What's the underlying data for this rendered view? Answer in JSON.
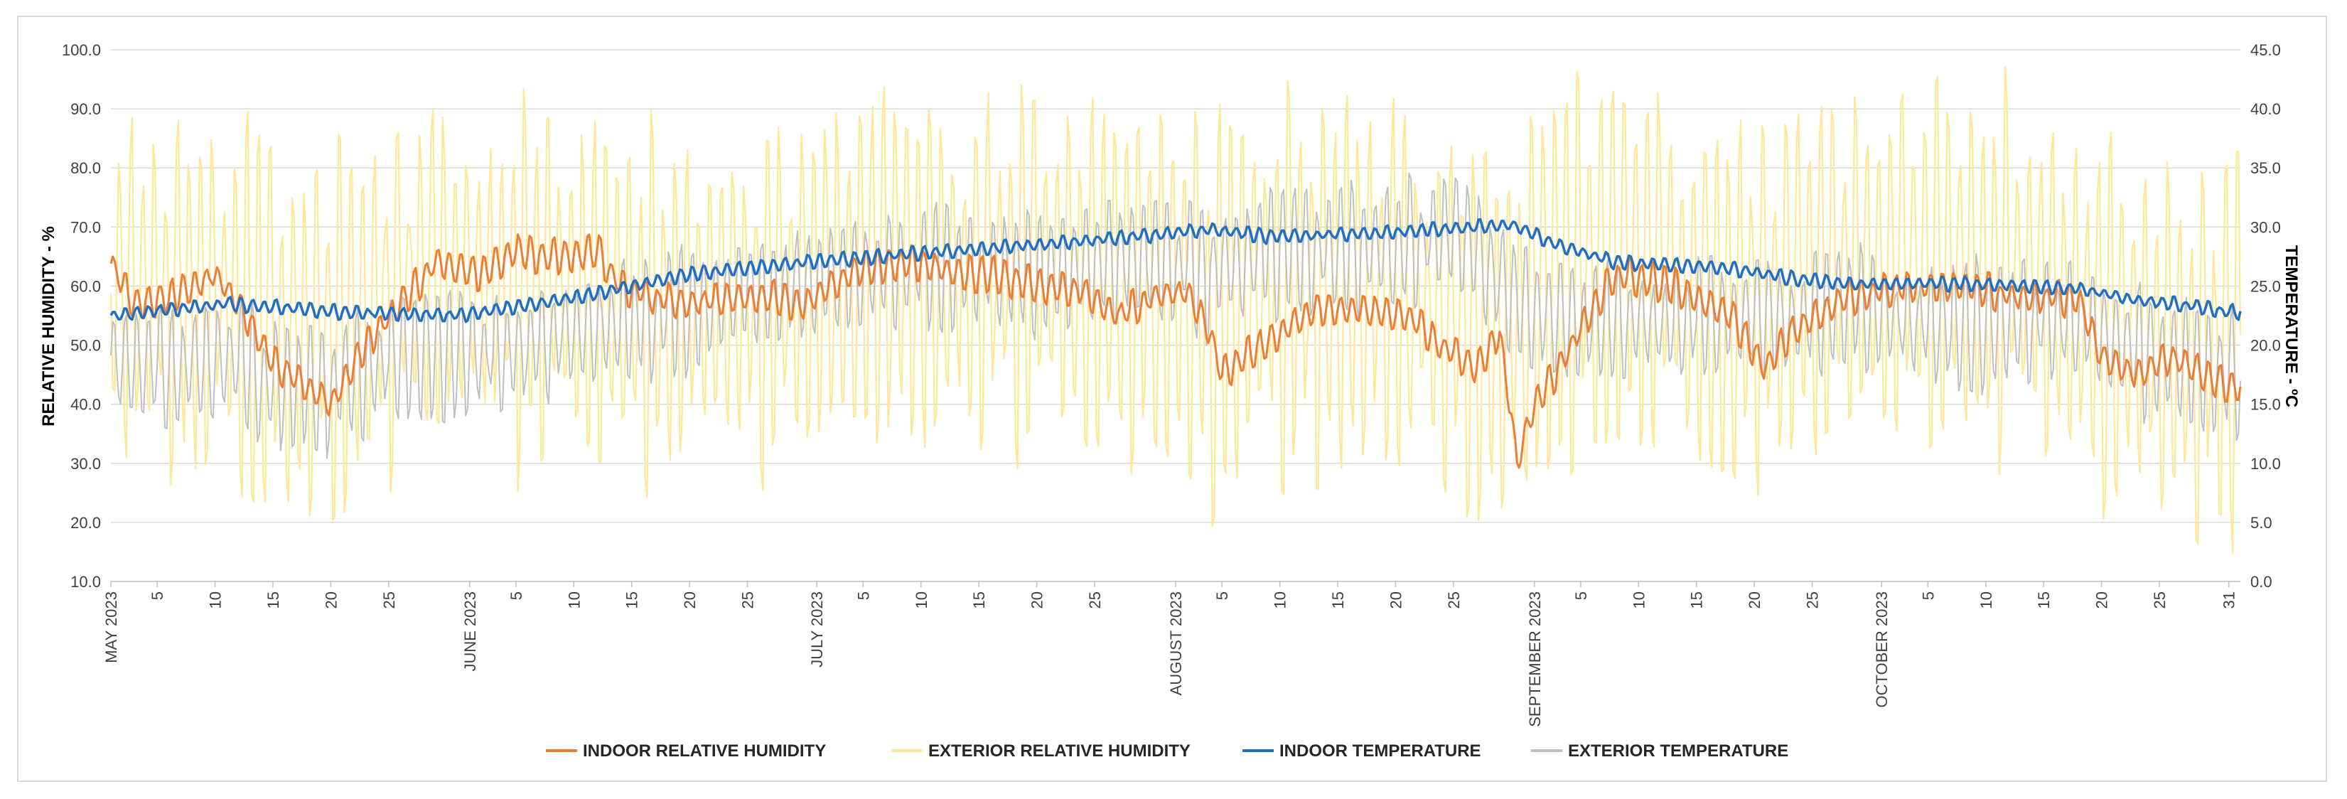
{
  "chart_data": {
    "type": "line",
    "title": "",
    "ylabel": "RELATIVE HUMIDITY - %",
    "y2label": "TEMPERATURE - ºC",
    "xlabel": "",
    "ylim": [
      10,
      100
    ],
    "y2lim": [
      0,
      45
    ],
    "grid": true,
    "legend_position": "bottom",
    "y_ticks": [
      "10.0",
      "20.0",
      "30.0",
      "40.0",
      "50.0",
      "60.0",
      "70.0",
      "80.0",
      "90.0",
      "100.0"
    ],
    "y2_ticks": [
      "0.0",
      "5.0",
      "10.0",
      "15.0",
      "20.0",
      "25.0",
      "30.0",
      "35.0",
      "40.0",
      "45.0"
    ],
    "x_range_days": [
      0,
      184
    ],
    "x_ticks": [
      {
        "day": 0,
        "label": "MAY 2023"
      },
      {
        "day": 4,
        "label": "5"
      },
      {
        "day": 9,
        "label": "10"
      },
      {
        "day": 14,
        "label": "15"
      },
      {
        "day": 19,
        "label": "20"
      },
      {
        "day": 24,
        "label": "25"
      },
      {
        "day": 31,
        "label": "JUNE 2023"
      },
      {
        "day": 35,
        "label": "5"
      },
      {
        "day": 40,
        "label": "10"
      },
      {
        "day": 45,
        "label": "15"
      },
      {
        "day": 50,
        "label": "20"
      },
      {
        "day": 55,
        "label": "25"
      },
      {
        "day": 61,
        "label": "JULY 2023"
      },
      {
        "day": 65,
        "label": "5"
      },
      {
        "day": 70,
        "label": "10"
      },
      {
        "day": 75,
        "label": "15"
      },
      {
        "day": 80,
        "label": "20"
      },
      {
        "day": 85,
        "label": "25"
      },
      {
        "day": 92,
        "label": "AUGUST 2023"
      },
      {
        "day": 96,
        "label": "5"
      },
      {
        "day": 101,
        "label": "10"
      },
      {
        "day": 106,
        "label": "15"
      },
      {
        "day": 111,
        "label": "20"
      },
      {
        "day": 116,
        "label": "25"
      },
      {
        "day": 123,
        "label": "SEPTEMBER 2023"
      },
      {
        "day": 127,
        "label": "5"
      },
      {
        "day": 132,
        "label": "10"
      },
      {
        "day": 137,
        "label": "15"
      },
      {
        "day": 142,
        "label": "20"
      },
      {
        "day": 147,
        "label": "25"
      },
      {
        "day": 153,
        "label": "OCTOBER 2023"
      },
      {
        "day": 157,
        "label": "5"
      },
      {
        "day": 162,
        "label": "10"
      },
      {
        "day": 167,
        "label": "15"
      },
      {
        "day": 172,
        "label": "20"
      },
      {
        "day": 177,
        "label": "25"
      },
      {
        "day": 183,
        "label": "31"
      }
    ],
    "series": [
      {
        "name": "INDOOR RELATIVE HUMIDITY",
        "axis": "left",
        "color": "#ED7D31",
        "width": 3,
        "daily_swing": 2.5,
        "seed": 11,
        "knots": [
          [
            0,
            64
          ],
          [
            2,
            57
          ],
          [
            5,
            58
          ],
          [
            9,
            62
          ],
          [
            11,
            57
          ],
          [
            14,
            47
          ],
          [
            17,
            43
          ],
          [
            19,
            40
          ],
          [
            22,
            50
          ],
          [
            25,
            57
          ],
          [
            28,
            64
          ],
          [
            32,
            62
          ],
          [
            35,
            66
          ],
          [
            37,
            65
          ],
          [
            40,
            65
          ],
          [
            42,
            66
          ],
          [
            44,
            60
          ],
          [
            47,
            58
          ],
          [
            50,
            57
          ],
          [
            54,
            58
          ],
          [
            57,
            58
          ],
          [
            60,
            57
          ],
          [
            62,
            60
          ],
          [
            65,
            63
          ],
          [
            70,
            64
          ],
          [
            73,
            62
          ],
          [
            76,
            62
          ],
          [
            80,
            60
          ],
          [
            84,
            59
          ],
          [
            87,
            55
          ],
          [
            90,
            58
          ],
          [
            93,
            59
          ],
          [
            95,
            52
          ],
          [
            96,
            45
          ],
          [
            98,
            48
          ],
          [
            101,
            52
          ],
          [
            104,
            56
          ],
          [
            108,
            56
          ],
          [
            112,
            55
          ],
          [
            115,
            50
          ],
          [
            118,
            46
          ],
          [
            120,
            52
          ],
          [
            121,
            38
          ],
          [
            121.5,
            30
          ],
          [
            123,
            40
          ],
          [
            125,
            46
          ],
          [
            128,
            56
          ],
          [
            130,
            62
          ],
          [
            135,
            60
          ],
          [
            140,
            55
          ],
          [
            143,
            46
          ],
          [
            145,
            52
          ],
          [
            150,
            58
          ],
          [
            155,
            60
          ],
          [
            160,
            60
          ],
          [
            165,
            58
          ],
          [
            168,
            58
          ],
          [
            170,
            58
          ],
          [
            172,
            48
          ],
          [
            175,
            45
          ],
          [
            178,
            48
          ],
          [
            181,
            45
          ],
          [
            183,
            43
          ]
        ]
      },
      {
        "name": "EXTERIOR RELATIVE HUMIDITY",
        "axis": "left",
        "color": "#FFE699",
        "width": 2.2,
        "daily_swing": 26,
        "seed": 23,
        "knots": [
          [
            0,
            60
          ],
          [
            10,
            58
          ],
          [
            14,
            52
          ],
          [
            18,
            50
          ],
          [
            22,
            55
          ],
          [
            28,
            63
          ],
          [
            35,
            60
          ],
          [
            40,
            60
          ],
          [
            45,
            56
          ],
          [
            50,
            57
          ],
          [
            55,
            58
          ],
          [
            60,
            60
          ],
          [
            65,
            63
          ],
          [
            70,
            62
          ],
          [
            75,
            62
          ],
          [
            80,
            62
          ],
          [
            85,
            60
          ],
          [
            90,
            60
          ],
          [
            95,
            55
          ],
          [
            100,
            60
          ],
          [
            105,
            60
          ],
          [
            110,
            60
          ],
          [
            115,
            55
          ],
          [
            120,
            50
          ],
          [
            125,
            62
          ],
          [
            130,
            63
          ],
          [
            135,
            62
          ],
          [
            140,
            55
          ],
          [
            145,
            60
          ],
          [
            150,
            62
          ],
          [
            155,
            64
          ],
          [
            160,
            62
          ],
          [
            165,
            63
          ],
          [
            170,
            55
          ],
          [
            175,
            52
          ],
          [
            180,
            48
          ],
          [
            183,
            50
          ]
        ]
      },
      {
        "name": "INDOOR TEMPERATURE",
        "axis": "right",
        "color": "#1F6FC5",
        "width": 3.5,
        "daily_swing": 0.5,
        "seed": 37,
        "knots": [
          [
            0,
            22.5
          ],
          [
            10,
            23.5
          ],
          [
            20,
            22.8
          ],
          [
            30,
            22.5
          ],
          [
            40,
            24
          ],
          [
            50,
            26
          ],
          [
            60,
            27
          ],
          [
            70,
            27.8
          ],
          [
            80,
            28.5
          ],
          [
            90,
            29.3
          ],
          [
            95,
            29.8
          ],
          [
            100,
            29.2
          ],
          [
            110,
            29.5
          ],
          [
            118,
            30
          ],
          [
            121,
            30.2
          ],
          [
            125,
            28.5
          ],
          [
            130,
            27
          ],
          [
            140,
            26.5
          ],
          [
            145,
            25.7
          ],
          [
            150,
            25.2
          ],
          [
            160,
            25.2
          ],
          [
            165,
            25
          ],
          [
            170,
            24.8
          ],
          [
            175,
            23.8
          ],
          [
            180,
            23.3
          ],
          [
            183,
            22.8
          ]
        ]
      },
      {
        "name": "EXTERIOR TEMPERATURE",
        "axis": "right",
        "color": "#BFBFBF",
        "width": 2,
        "daily_swing": 4.5,
        "seed": 51,
        "knots": [
          [
            0,
            18.5
          ],
          [
            5,
            18
          ],
          [
            10,
            19
          ],
          [
            15,
            16.5
          ],
          [
            18,
            16
          ],
          [
            20,
            17
          ],
          [
            25,
            19
          ],
          [
            30,
            19.5
          ],
          [
            35,
            19.5
          ],
          [
            40,
            21
          ],
          [
            45,
            22
          ],
          [
            50,
            23
          ],
          [
            55,
            24.5
          ],
          [
            60,
            25
          ],
          [
            65,
            26
          ],
          [
            70,
            26.5
          ],
          [
            75,
            26.5
          ],
          [
            80,
            26
          ],
          [
            85,
            27
          ],
          [
            90,
            27.5
          ],
          [
            95,
            26
          ],
          [
            100,
            28
          ],
          [
            105,
            28
          ],
          [
            110,
            28
          ],
          [
            114,
            29
          ],
          [
            116,
            30
          ],
          [
            118,
            28
          ],
          [
            120,
            25
          ],
          [
            122,
            23
          ],
          [
            125,
            22
          ],
          [
            130,
            22
          ],
          [
            135,
            22
          ],
          [
            140,
            22.5
          ],
          [
            145,
            22
          ],
          [
            150,
            23.5
          ],
          [
            155,
            22
          ],
          [
            160,
            21.5
          ],
          [
            165,
            22
          ],
          [
            170,
            22
          ],
          [
            175,
            19.5
          ],
          [
            180,
            18
          ],
          [
            183,
            17.5
          ]
        ]
      }
    ]
  }
}
